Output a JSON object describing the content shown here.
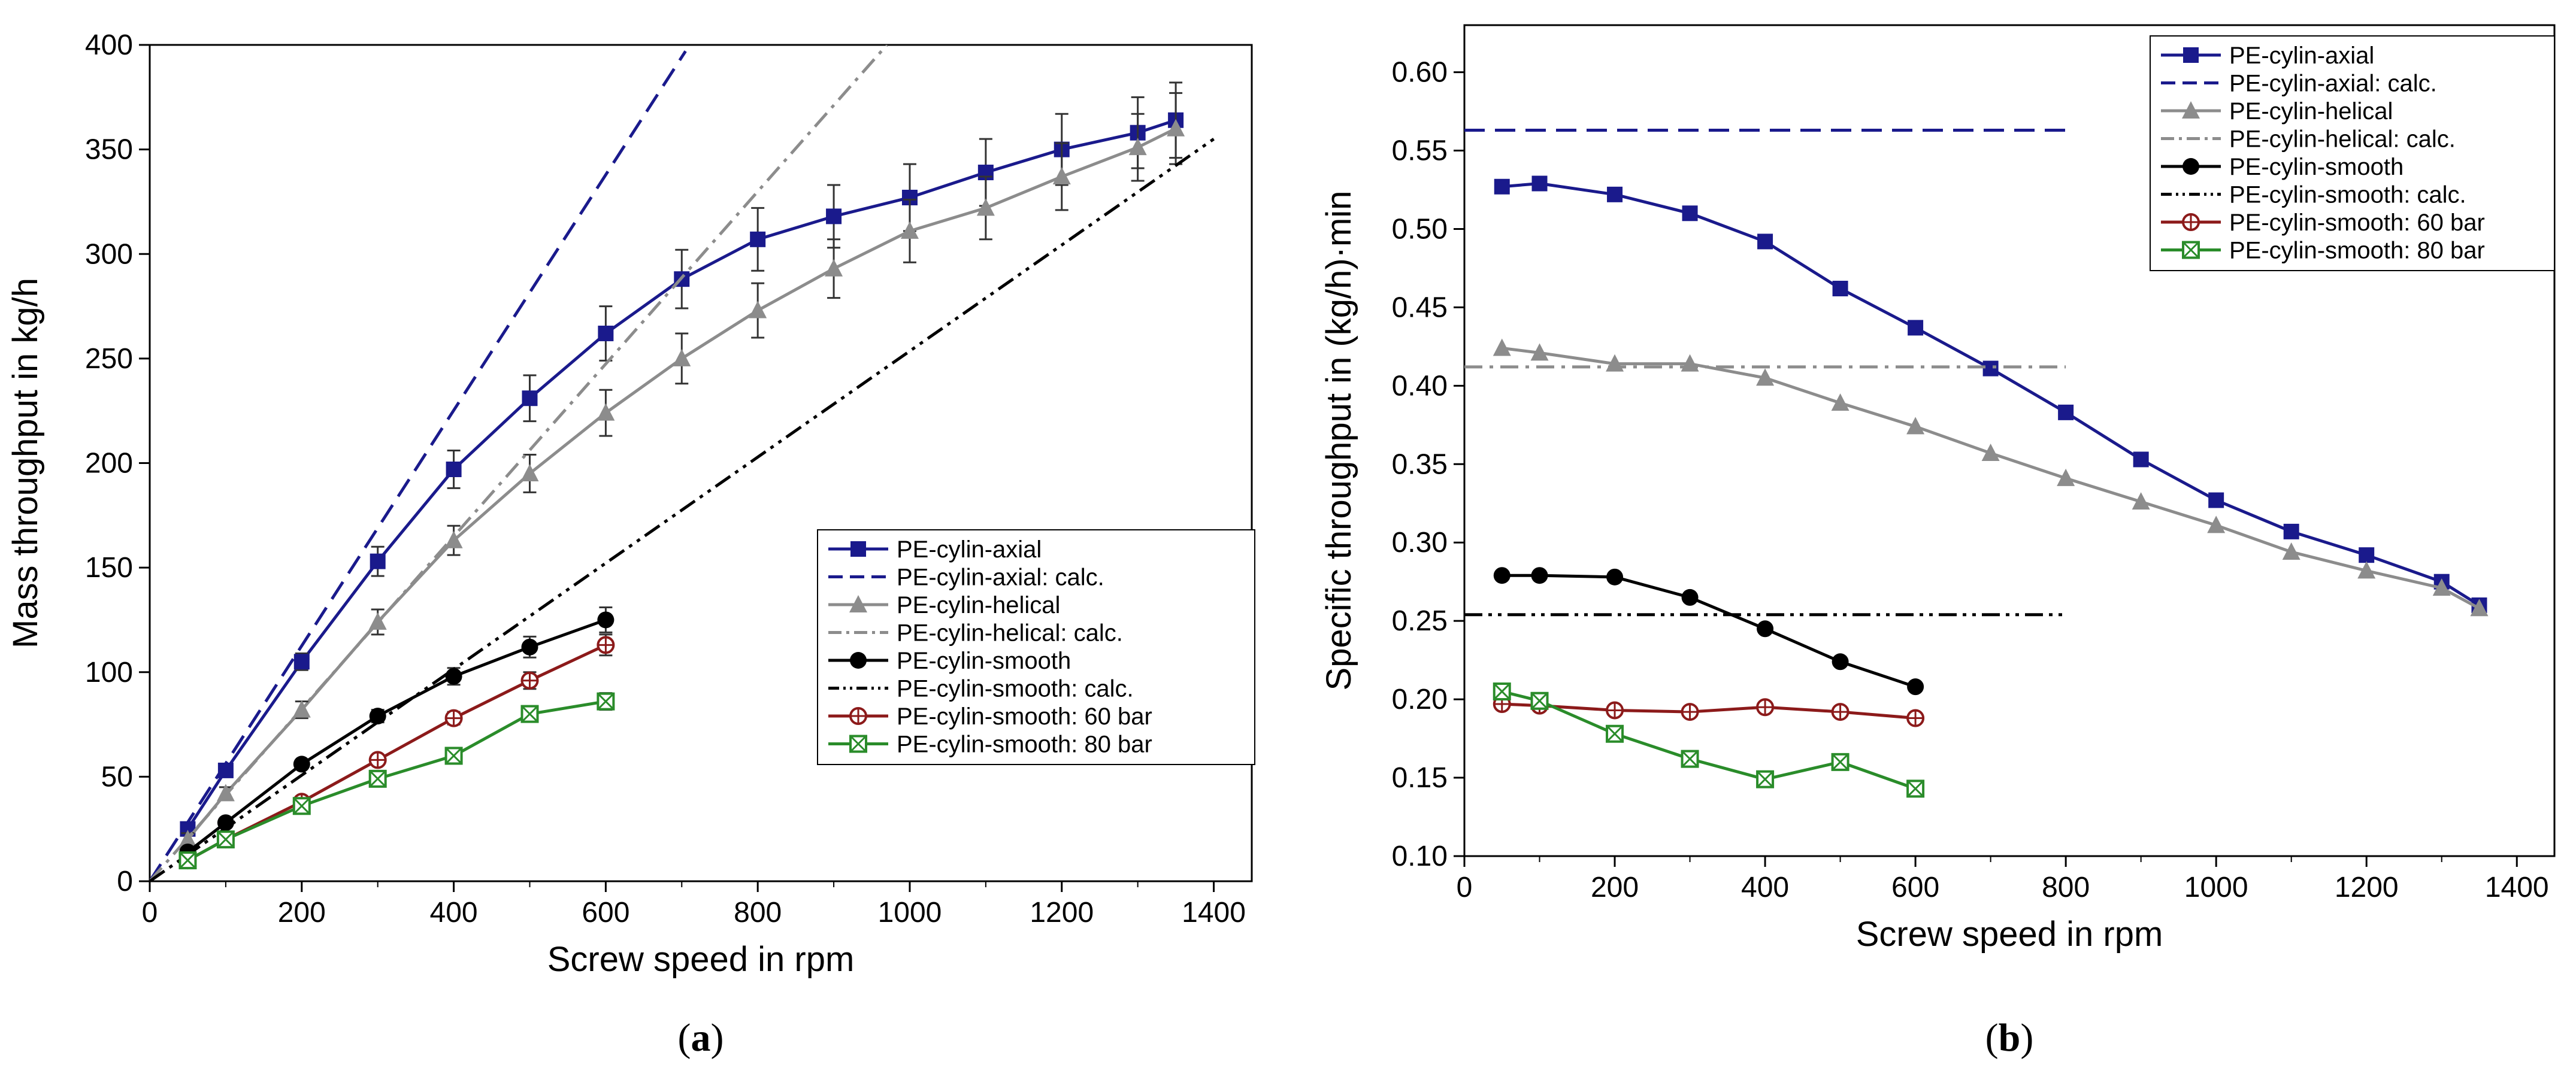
{
  "chart_data": [
    {
      "type": "line",
      "panel": "a",
      "caption_letter": "a",
      "xlabel": "Screw speed in rpm",
      "ylabel": "Mass throughput in kg/h",
      "xlim": [
        0,
        1450
      ],
      "ylim": [
        0,
        400
      ],
      "xticks": [
        0,
        200,
        400,
        600,
        800,
        1000,
        1200,
        1400
      ],
      "yticks": [
        0,
        50,
        100,
        150,
        200,
        250,
        300,
        350,
        400
      ],
      "grid": false,
      "legend_position": "bottom-right",
      "series": [
        {
          "name": "PE-cylin-axial",
          "style": "solid",
          "marker": "square",
          "color": "#1a1a8c",
          "x": [
            50,
            100,
            200,
            300,
            400,
            500,
            600,
            700,
            800,
            900,
            1000,
            1100,
            1200,
            1300,
            1350
          ],
          "y": [
            25,
            53,
            105,
            153,
            197,
            231,
            262,
            288,
            307,
            318,
            327,
            339,
            350,
            358,
            364
          ],
          "err": [
            3,
            3,
            4,
            7,
            9,
            11,
            13,
            14,
            15,
            15,
            16,
            16,
            17,
            17,
            18
          ]
        },
        {
          "name": "PE-cylin-axial: calc.",
          "style": "dashed",
          "marker": "none",
          "color": "#1a1a8c",
          "x": [
            0,
            705
          ],
          "y": [
            0,
            397
          ]
        },
        {
          "name": "PE-cylin-helical",
          "style": "solid",
          "marker": "triangle",
          "color": "#8c8c8c",
          "x": [
            50,
            100,
            200,
            300,
            400,
            500,
            600,
            700,
            800,
            900,
            1000,
            1100,
            1200,
            1300,
            1350
          ],
          "y": [
            20,
            42,
            82,
            124,
            163,
            195,
            224,
            250,
            273,
            293,
            311,
            322,
            337,
            351,
            360
          ],
          "err": [
            3,
            3,
            4,
            6,
            7,
            9,
            11,
            12,
            13,
            14,
            15,
            15,
            16,
            16,
            17
          ]
        },
        {
          "name": "PE-cylin-helical: calc.",
          "style": "dashdot",
          "marker": "none",
          "color": "#8c8c8c",
          "x": [
            0,
            970
          ],
          "y": [
            0,
            400
          ]
        },
        {
          "name": "PE-cylin-smooth",
          "style": "solid",
          "marker": "circle",
          "color": "#000000",
          "x": [
            50,
            100,
            200,
            300,
            400,
            500,
            600
          ],
          "y": [
            14,
            28,
            56,
            79,
            98,
            112,
            125
          ],
          "err": [
            2,
            2,
            2,
            3,
            4,
            5,
            6
          ]
        },
        {
          "name": "PE-cylin-smooth: calc.",
          "style": "dashdotdot",
          "marker": "none",
          "color": "#000000",
          "x": [
            0,
            1400
          ],
          "y": [
            0,
            355
          ]
        },
        {
          "name": "PE-cylin-smooth: 60 bar",
          "style": "solid",
          "marker": "circle-plus",
          "color": "#8c1a1a",
          "x": [
            50,
            100,
            200,
            300,
            400,
            500,
            600
          ],
          "y": [
            10,
            20,
            38,
            58,
            78,
            96,
            113
          ],
          "err": [
            2,
            2,
            2,
            2,
            3,
            4,
            5
          ]
        },
        {
          "name": "PE-cylin-smooth: 80 bar",
          "style": "solid",
          "marker": "square-x",
          "color": "#2a8c2a",
          "x": [
            50,
            100,
            200,
            300,
            400,
            500,
            600
          ],
          "y": [
            10,
            20,
            36,
            49,
            60,
            80,
            86
          ],
          "err": [
            2,
            2,
            2,
            2,
            3,
            3,
            4
          ]
        }
      ]
    },
    {
      "type": "line",
      "panel": "b",
      "caption_letter": "b",
      "xlabel": "Screw speed in rpm",
      "ylabel": "Specific throughput in (kg/h)·min",
      "xlim": [
        0,
        1450
      ],
      "ylim": [
        0.1,
        0.63
      ],
      "xticks": [
        0,
        200,
        400,
        600,
        800,
        1000,
        1200,
        1400
      ],
      "yticks": [
        "0.10",
        "0.15",
        "0.20",
        "0.25",
        "0.30",
        "0.35",
        "0.40",
        "0.45",
        "0.50",
        "0.55",
        "0.60"
      ],
      "grid": false,
      "legend_position": "top-right",
      "series": [
        {
          "name": "PE-cylin-axial",
          "style": "solid",
          "marker": "square",
          "color": "#1a1a8c",
          "x": [
            50,
            100,
            200,
            300,
            400,
            500,
            600,
            700,
            800,
            900,
            1000,
            1100,
            1200,
            1300,
            1350
          ],
          "y": [
            0.527,
            0.529,
            0.522,
            0.51,
            0.492,
            0.462,
            0.437,
            0.411,
            0.383,
            0.353,
            0.327,
            0.307,
            0.292,
            0.275,
            0.26
          ]
        },
        {
          "name": "PE-cylin-axial: calc.",
          "style": "dashed",
          "marker": "none",
          "color": "#1a1a8c",
          "x": [
            0,
            800
          ],
          "y": [
            0.563,
            0.563
          ]
        },
        {
          "name": "PE-cylin-helical",
          "style": "solid",
          "marker": "triangle",
          "color": "#8c8c8c",
          "x": [
            50,
            100,
            200,
            300,
            400,
            500,
            600,
            700,
            800,
            900,
            1000,
            1100,
            1200,
            1300,
            1350
          ],
          "y": [
            0.424,
            0.421,
            0.414,
            0.414,
            0.405,
            0.389,
            0.374,
            0.357,
            0.341,
            0.326,
            0.311,
            0.294,
            0.282,
            0.271,
            0.258
          ]
        },
        {
          "name": "PE-cylin-helical: calc.",
          "style": "dashdot",
          "marker": "none",
          "color": "#8c8c8c",
          "x": [
            0,
            800
          ],
          "y": [
            0.412,
            0.412
          ]
        },
        {
          "name": "PE-cylin-smooth",
          "style": "solid",
          "marker": "circle",
          "color": "#000000",
          "x": [
            50,
            100,
            200,
            300,
            400,
            500,
            600
          ],
          "y": [
            0.279,
            0.279,
            0.278,
            0.265,
            0.245,
            0.224,
            0.208
          ]
        },
        {
          "name": "PE-cylin-smooth: calc.",
          "style": "dashdotdot",
          "marker": "none",
          "color": "#000000",
          "x": [
            0,
            800
          ],
          "y": [
            0.254,
            0.254
          ]
        },
        {
          "name": "PE-cylin-smooth: 60 bar",
          "style": "solid",
          "marker": "circle-plus",
          "color": "#8c1a1a",
          "x": [
            50,
            100,
            200,
            300,
            400,
            500,
            600
          ],
          "y": [
            0.197,
            0.196,
            0.193,
            0.192,
            0.195,
            0.192,
            0.188
          ]
        },
        {
          "name": "PE-cylin-smooth: 80 bar",
          "style": "solid",
          "marker": "square-x",
          "color": "#2a8c2a",
          "x": [
            50,
            100,
            200,
            300,
            400,
            500,
            600
          ],
          "y": [
            0.205,
            0.199,
            0.178,
            0.162,
            0.149,
            0.16,
            0.143
          ]
        }
      ]
    }
  ]
}
